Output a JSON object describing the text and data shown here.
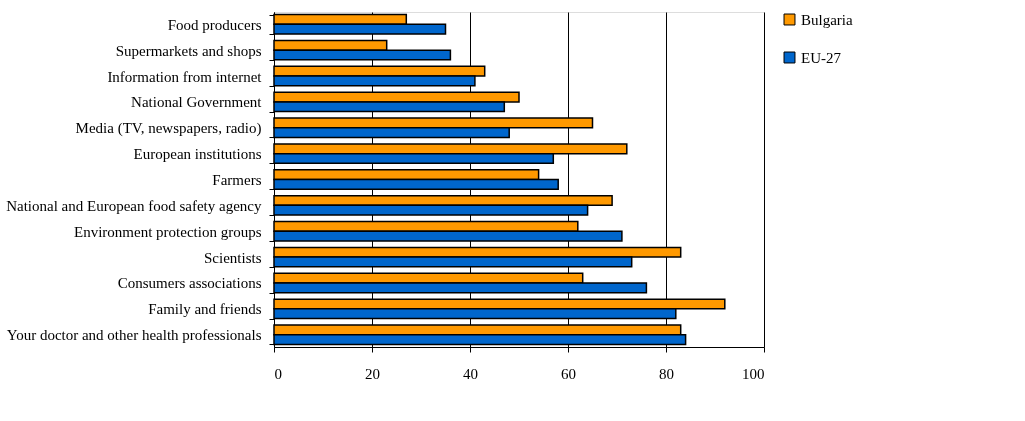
{
  "chart_data": {
    "type": "bar",
    "orientation": "horizontal",
    "categories": [
      "Food producers",
      "Supermarkets and shops",
      "Information from internet",
      "National Government",
      "Media (TV, newspapers, radio)",
      "European institutions",
      "Farmers",
      "National and European food safety agency",
      "Environment protection groups",
      "Scientists",
      "Consumers associations",
      "Family and friends",
      "Your doctor and other health professionals"
    ],
    "series": [
      {
        "name": "Bulgaria",
        "color": "#ff9900",
        "values": [
          27,
          23,
          43,
          50,
          65,
          72,
          54,
          69,
          62,
          83,
          63,
          92,
          83
        ]
      },
      {
        "name": "EU-27",
        "color": "#0066cc",
        "values": [
          35,
          36,
          41,
          47,
          48,
          57,
          58,
          64,
          71,
          73,
          76,
          82,
          84
        ]
      }
    ],
    "xlim": [
      0,
      100
    ],
    "xticks": [
      0,
      20,
      40,
      60,
      80,
      100
    ],
    "grid": "x",
    "legend": "right"
  }
}
